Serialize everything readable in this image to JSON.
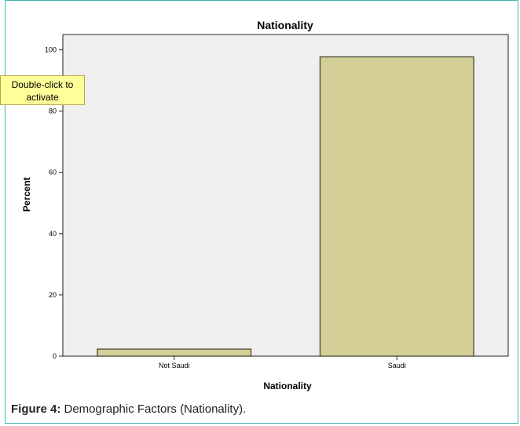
{
  "chart_data": {
    "type": "bar",
    "title": "Nationality",
    "xlabel": "Nationality",
    "ylabel": "Percent",
    "categories": [
      "Not Saudi",
      "Saudi"
    ],
    "values": [
      2.3,
      97.7
    ],
    "ylim": [
      0,
      105
    ],
    "yticks": [
      0,
      20,
      40,
      60,
      80,
      100
    ],
    "grid": false,
    "colors": {
      "bar_fill": "#d3cf97",
      "bar_stroke": "#3a3a2a",
      "plot_bg": "#efefef"
    }
  },
  "tooltip": {
    "line1": "Double-click to",
    "line2": "activate"
  },
  "caption": {
    "label": "Figure 4:",
    "text": " Demographic Factors (Nationality)."
  }
}
